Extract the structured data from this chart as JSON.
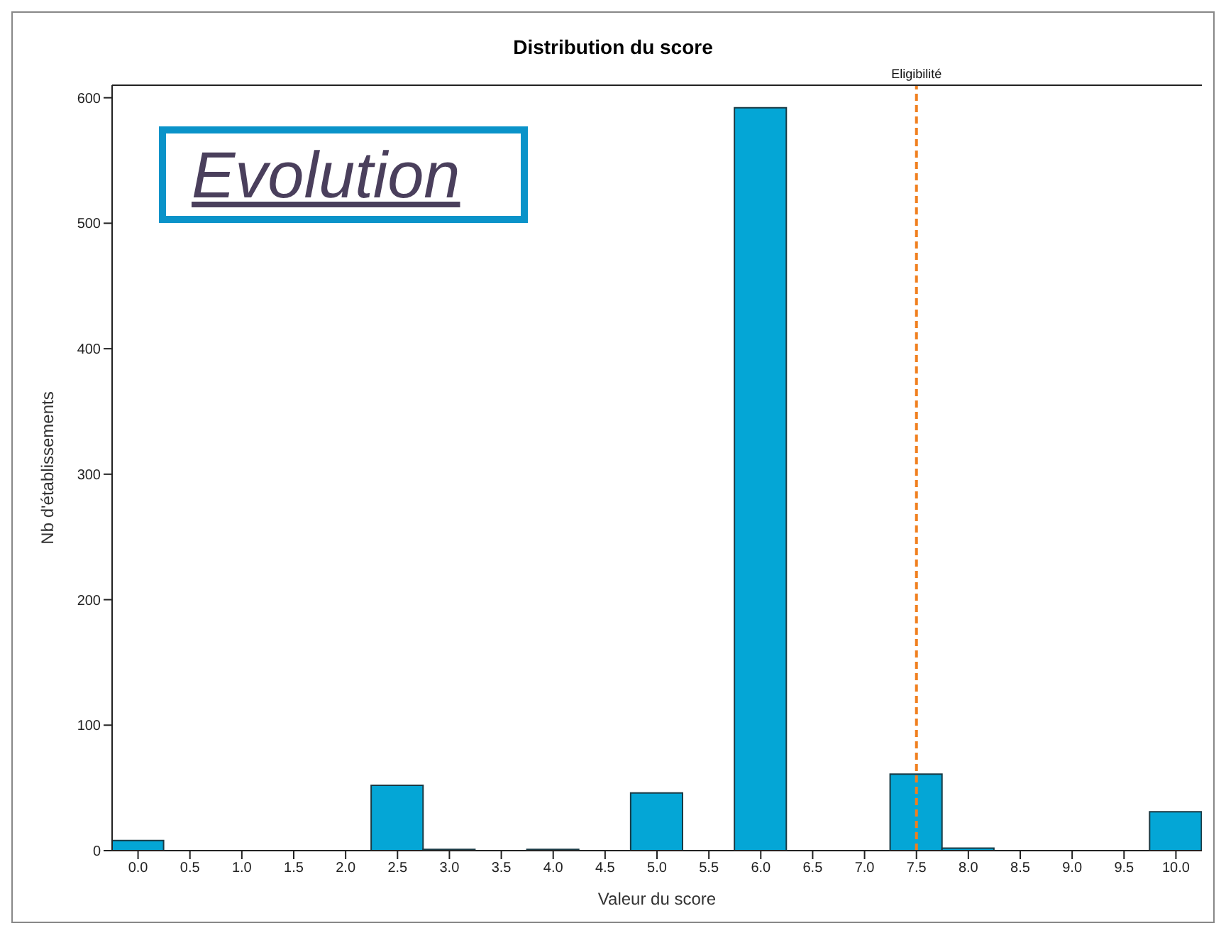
{
  "chart_data": {
    "type": "histogram",
    "title": "Distribution du score",
    "xlabel": "Valeur du score",
    "ylabel": "Nb d'établissements",
    "bins": [
      -0.25,
      0.25,
      0.75,
      1.25,
      1.75,
      2.25,
      2.75,
      3.25,
      3.75,
      4.25,
      4.75,
      5.25,
      5.75,
      6.25,
      6.75,
      7.25,
      7.75,
      8.25,
      8.75,
      9.25,
      9.75,
      10.25
    ],
    "values": [
      8,
      0,
      0,
      0,
      0,
      52,
      1,
      0,
      1,
      0,
      46,
      0,
      592,
      0,
      0,
      61,
      2,
      0,
      0,
      0,
      31
    ],
    "color": "#04a6d6",
    "xlim": [
      -0.25,
      10.25
    ],
    "xticks": [
      {
        "value": 0,
        "label": "0.0"
      },
      {
        "value": 0.5,
        "label": "0.5"
      },
      {
        "value": 1,
        "label": "1.0"
      },
      {
        "value": 1.5,
        "label": "1.5"
      },
      {
        "value": 2,
        "label": "2.0"
      },
      {
        "value": 2.5,
        "label": "2.5"
      },
      {
        "value": 3,
        "label": "3.0"
      },
      {
        "value": 3.5,
        "label": "3.5"
      },
      {
        "value": 4,
        "label": "4.0"
      },
      {
        "value": 4.5,
        "label": "4.5"
      },
      {
        "value": 5,
        "label": "5.0"
      },
      {
        "value": 5.5,
        "label": "5.5"
      },
      {
        "value": 6,
        "label": "6.0"
      },
      {
        "value": 6.5,
        "label": "6.5"
      },
      {
        "value": 7,
        "label": "7.0"
      },
      {
        "value": 7.5,
        "label": "7.5"
      },
      {
        "value": 8,
        "label": "8.0"
      },
      {
        "value": 8.5,
        "label": "8.5"
      },
      {
        "value": 9,
        "label": "9.0"
      },
      {
        "value": 9.5,
        "label": "9.5"
      },
      {
        "value": 10,
        "label": "10.0"
      }
    ],
    "ylim": [
      0,
      610
    ],
    "yticks": [
      0,
      100,
      200,
      300,
      400,
      500,
      600
    ],
    "ref_lines": [
      {
        "axis": "x",
        "value": 7.5,
        "label": "Eligibilité",
        "color": "#f07f1e",
        "line_style": "dashed"
      }
    ],
    "annotations": [
      "Evolution"
    ]
  }
}
